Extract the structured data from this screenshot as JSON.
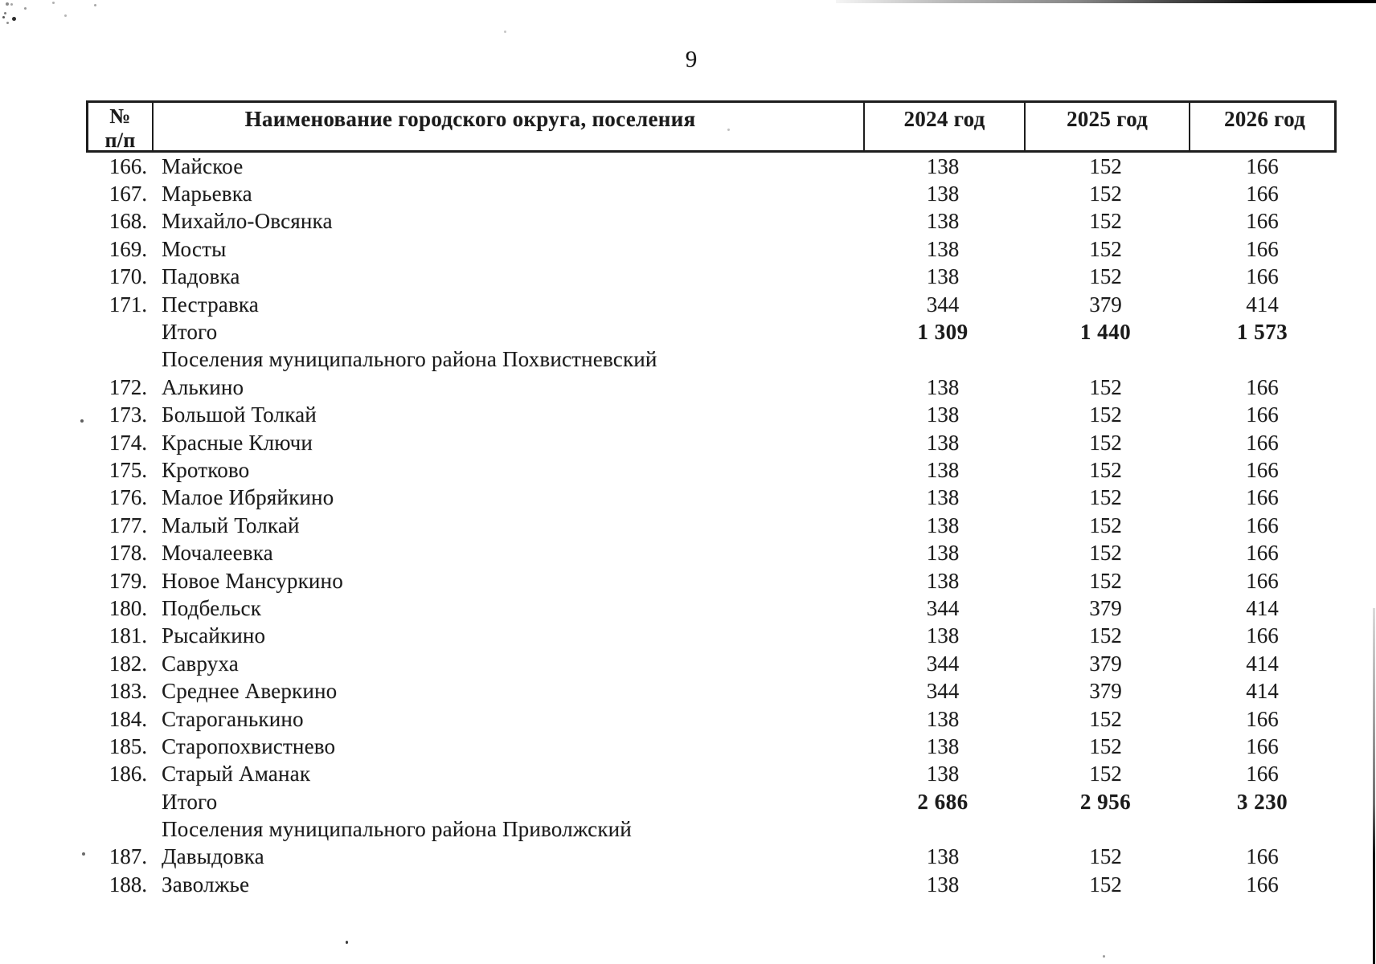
{
  "page": {
    "number": "9"
  },
  "table": {
    "headers": {
      "num_line1": "№",
      "num_line2": "п/п",
      "name": "Наименование городского округа, поселения",
      "years": [
        "2024 год",
        "2025 год",
        "2026 год"
      ]
    },
    "rows": [
      {
        "type": "data",
        "num": "166.",
        "name": "Майское",
        "v2024": "138",
        "v2025": "152",
        "v2026": "166"
      },
      {
        "type": "data",
        "num": "167.",
        "name": "Марьевка",
        "v2024": "138",
        "v2025": "152",
        "v2026": "166"
      },
      {
        "type": "data",
        "num": "168.",
        "name": "Михайло-Овсянка",
        "v2024": "138",
        "v2025": "152",
        "v2026": "166"
      },
      {
        "type": "data",
        "num": "169.",
        "name": "Мосты",
        "v2024": "138",
        "v2025": "152",
        "v2026": "166"
      },
      {
        "type": "data",
        "num": "170.",
        "name": "Падовка",
        "v2024": "138",
        "v2025": "152",
        "v2026": "166"
      },
      {
        "type": "data",
        "num": "171.",
        "name": "Пестравка",
        "v2024": "344",
        "v2025": "379",
        "v2026": "414"
      },
      {
        "type": "total",
        "num": "",
        "name": "Итого",
        "v2024": "1 309",
        "v2025": "1 440",
        "v2026": "1 573"
      },
      {
        "type": "section",
        "num": "",
        "name": "Поселения муниципального района Похвистневский",
        "v2024": "",
        "v2025": "",
        "v2026": ""
      },
      {
        "type": "data",
        "num": "172.",
        "name": "Алькино",
        "v2024": "138",
        "v2025": "152",
        "v2026": "166"
      },
      {
        "type": "data",
        "num": "173.",
        "name": "Большой Толкай",
        "v2024": "138",
        "v2025": "152",
        "v2026": "166"
      },
      {
        "type": "data",
        "num": "174.",
        "name": "Красные Ключи",
        "v2024": "138",
        "v2025": "152",
        "v2026": "166"
      },
      {
        "type": "data",
        "num": "175.",
        "name": "Кротково",
        "v2024": "138",
        "v2025": "152",
        "v2026": "166"
      },
      {
        "type": "data",
        "num": "176.",
        "name": "Малое Ибряйкино",
        "v2024": "138",
        "v2025": "152",
        "v2026": "166"
      },
      {
        "type": "data",
        "num": "177.",
        "name": "Малый Толкай",
        "v2024": "138",
        "v2025": "152",
        "v2026": "166"
      },
      {
        "type": "data",
        "num": "178.",
        "name": "Мочалеевка",
        "v2024": "138",
        "v2025": "152",
        "v2026": "166"
      },
      {
        "type": "data",
        "num": "179.",
        "name": "Новое Мансуркино",
        "v2024": "138",
        "v2025": "152",
        "v2026": "166"
      },
      {
        "type": "data",
        "num": "180.",
        "name": "Подбельск",
        "v2024": "344",
        "v2025": "379",
        "v2026": "414"
      },
      {
        "type": "data",
        "num": "181.",
        "name": "Рысайкино",
        "v2024": "138",
        "v2025": "152",
        "v2026": "166"
      },
      {
        "type": "data",
        "num": "182.",
        "name": "Савруха",
        "v2024": "344",
        "v2025": "379",
        "v2026": "414"
      },
      {
        "type": "data",
        "num": "183.",
        "name": "Среднее Аверкино",
        "v2024": "344",
        "v2025": "379",
        "v2026": "414"
      },
      {
        "type": "data",
        "num": "184.",
        "name": "Староганькино",
        "v2024": "138",
        "v2025": "152",
        "v2026": "166"
      },
      {
        "type": "data",
        "num": "185.",
        "name": "Старопохвистнево",
        "v2024": "138",
        "v2025": "152",
        "v2026": "166"
      },
      {
        "type": "data",
        "num": "186.",
        "name": "Старый Аманак",
        "v2024": "138",
        "v2025": "152",
        "v2026": "166"
      },
      {
        "type": "total",
        "num": "",
        "name": "Итого",
        "v2024": "2 686",
        "v2025": "2 956",
        "v2026": "3 230"
      },
      {
        "type": "section",
        "num": "",
        "name": "Поселения муниципального района Приволжский",
        "v2024": "",
        "v2025": "",
        "v2026": ""
      },
      {
        "type": "data",
        "num": "187.",
        "name": "Давыдовка",
        "v2024": "138",
        "v2025": "152",
        "v2026": "166"
      },
      {
        "type": "data",
        "num": "188.",
        "name": "Заволжье",
        "v2024": "138",
        "v2025": "152",
        "v2026": "166"
      }
    ]
  }
}
